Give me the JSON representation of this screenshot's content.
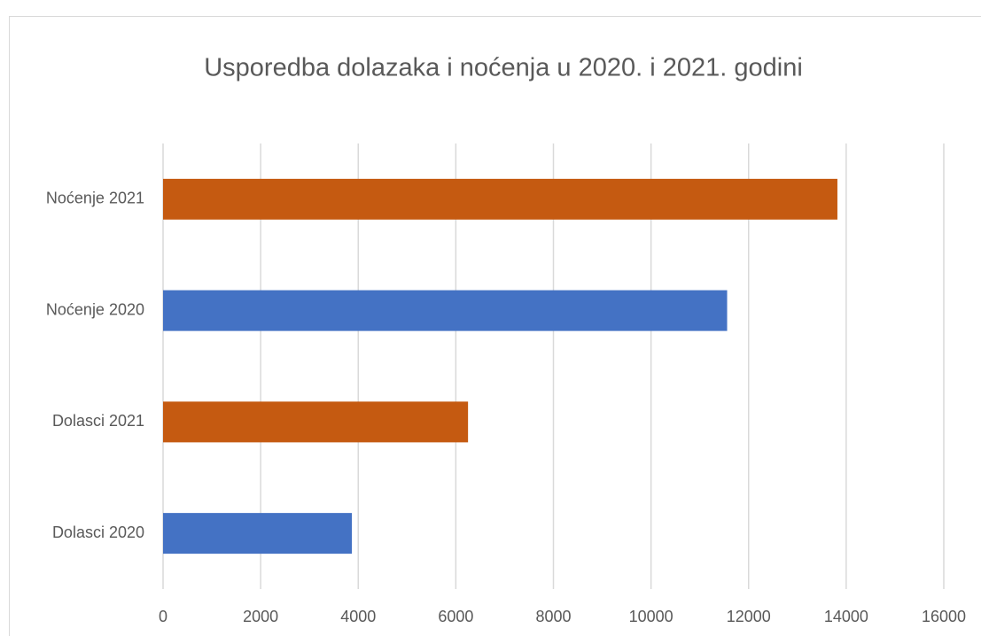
{
  "chart_data": {
    "type": "bar",
    "orientation": "horizontal",
    "title": "Usporedba dolazaka i noćenja u 2020. i 2021. godini",
    "categories": [
      "Noćenje 2021",
      "Noćenje 2020",
      "Dolasci 2021",
      "Dolasci 2020"
    ],
    "values": [
      13820,
      11560,
      6250,
      3870
    ],
    "colors": [
      "#c55a11",
      "#4472c4",
      "#c55a11",
      "#4472c4"
    ],
    "xlim": [
      0,
      16000
    ],
    "xticks": [
      0,
      2000,
      4000,
      6000,
      8000,
      10000,
      12000,
      14000,
      16000
    ],
    "grid": true
  }
}
